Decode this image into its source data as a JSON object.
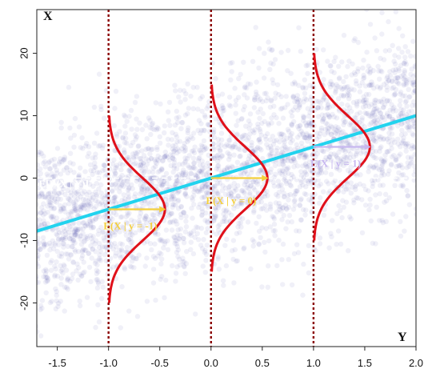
{
  "chart_data": {
    "type": "scatter",
    "title": "",
    "xlabel": "Y",
    "ylabel": "X",
    "xlim": [
      -1.7,
      2.0
    ],
    "ylim": [
      -27,
      27
    ],
    "x_ticks": [
      "-1.5",
      "-1.0",
      "-0.5",
      "0.0",
      "0.5",
      "1.0",
      "1.5",
      "2.0"
    ],
    "x_tick_values": [
      -1.5,
      -1.0,
      -0.5,
      0.0,
      0.5,
      1.0,
      1.5,
      2.0
    ],
    "y_ticks": [
      "-20",
      "-10",
      "0",
      "10",
      "20"
    ],
    "y_tick_values": [
      -20,
      -10,
      0,
      10,
      20
    ],
    "grid": false,
    "scatter_cloud": {
      "color": "#2a2f9a",
      "description_trend": "dense point cloud along X = 5*Y",
      "slope": 5,
      "intercept": 0,
      "spread_sd": 7,
      "point_count": 3200
    },
    "regression_line": {
      "x": [
        -1.7,
        2.0
      ],
      "y": [
        -8.5,
        10
      ],
      "color": "#22d3ee"
    },
    "mean_line": {
      "y": 0,
      "color": "#ffffff"
    },
    "vertical_lines": {
      "x": [
        -1.0,
        0.0,
        1.0
      ],
      "color": "#8b0000"
    },
    "conditional_densities": [
      {
        "at": -1.0,
        "mean": -5,
        "range": [
          -20,
          10
        ],
        "color": "#e0101a"
      },
      {
        "at": 0.0,
        "mean": 0,
        "range": [
          -15,
          15
        ],
        "color": "#e0101a"
      },
      {
        "at": 1.0,
        "mean": 5,
        "range": [
          -10,
          20
        ],
        "color": "#e0101a"
      }
    ],
    "arrows": [
      {
        "x0": -1.0,
        "x1": -0.45,
        "y": -5,
        "color": "#f4d03f"
      },
      {
        "x0": 0.0,
        "x1": 0.55,
        "y": 0,
        "color": "#f4d03f"
      },
      {
        "x0": 1.0,
        "x1": 1.55,
        "y": 5,
        "color": "#c8b8f0"
      }
    ],
    "annotations": [
      {
        "text": "E[E(X | Y)]",
        "x": -1.68,
        "y": -1.5,
        "color": "#ffffff"
      },
      {
        "text": "E(X | y = -1)",
        "x": -1.05,
        "y": -8.2,
        "color": "#f4d03f"
      },
      {
        "text": "E(X | y = 0)",
        "x": -0.05,
        "y": -4.2,
        "color": "#f4d03f"
      },
      {
        "text": "E(X | y = 1)",
        "x": 0.97,
        "y": 1.8,
        "color": "#c8b8f0"
      }
    ]
  }
}
